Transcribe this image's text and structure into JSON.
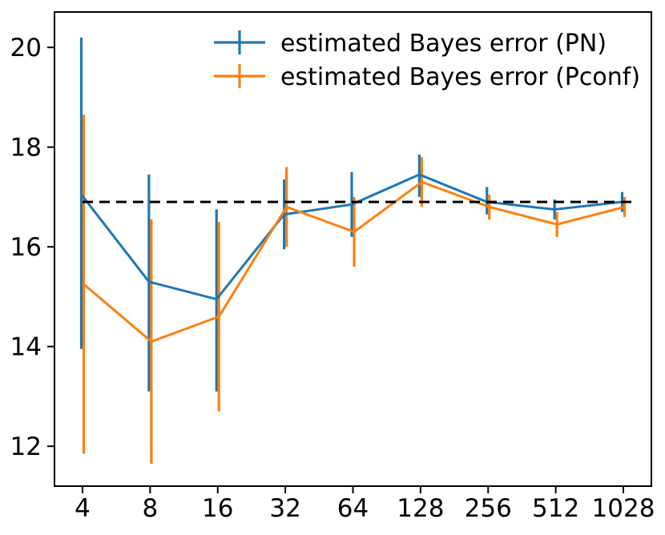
{
  "figure": {
    "background": "#ffffff",
    "axes_color": "#000000"
  },
  "chart_data": {
    "type": "line",
    "title": "",
    "xlabel": "",
    "ylabel": "",
    "categories": [
      "4",
      "8",
      "16",
      "32",
      "64",
      "128",
      "256",
      "512",
      "1028"
    ],
    "yticks": [
      12,
      14,
      16,
      18,
      20
    ],
    "ylim": [
      11.2,
      20.71
    ],
    "grid": false,
    "legend_position": "upper center inside, no frame",
    "hline": {
      "value": 16.9,
      "style": "dashed",
      "color": "#000000"
    },
    "series": [
      {
        "id": "pn",
        "name": "estimated Bayes error (PN)",
        "color": "#1f77b4",
        "values": [
          17.05,
          15.3,
          14.95,
          16.65,
          16.85,
          17.45,
          16.9,
          16.75,
          16.9
        ],
        "err_low": [
          13.95,
          13.1,
          13.1,
          15.95,
          16.2,
          17.0,
          16.65,
          16.55,
          16.7
        ],
        "err_high": [
          20.2,
          17.45,
          16.75,
          17.35,
          17.5,
          17.85,
          17.2,
          16.95,
          17.1
        ]
      },
      {
        "id": "pconf",
        "name": "estimated Bayes error (Pconf)",
        "color": "#ff7f0e",
        "values": [
          15.25,
          14.1,
          14.6,
          16.8,
          16.3,
          17.3,
          16.8,
          16.45,
          16.8
        ],
        "err_low": [
          11.85,
          11.65,
          12.7,
          16.0,
          15.6,
          16.8,
          16.55,
          16.2,
          16.6
        ],
        "err_high": [
          18.65,
          16.55,
          16.5,
          17.6,
          17.0,
          17.8,
          17.05,
          16.7,
          17.0
        ]
      }
    ]
  }
}
